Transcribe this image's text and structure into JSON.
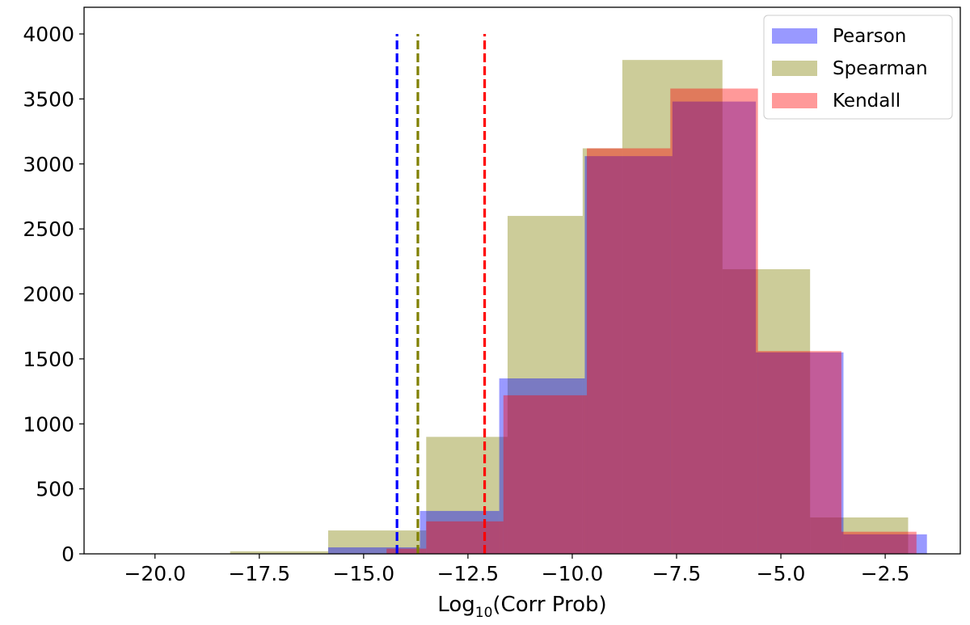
{
  "chart_data": {
    "type": "bar",
    "title": "",
    "xlabel": "Log",
    "xlabel_sub": "10",
    "xlabel_rest": "(Corr Prob)",
    "ylabel": "",
    "xlim": [
      -21.7,
      -0.7
    ],
    "ylim": [
      0,
      4000
    ],
    "grid": false,
    "legend_position": "top-right",
    "x_ticks": [
      -20.0,
      -17.5,
      -15.0,
      -12.5,
      -10.0,
      -7.5,
      -5.0,
      -2.5
    ],
    "x_tick_labels": [
      "−20.0",
      "−17.5",
      "−15.0",
      "−12.5",
      "−10.0",
      "−7.5",
      "−5.0",
      "−2.5"
    ],
    "y_ticks": [
      0,
      500,
      1000,
      1500,
      2000,
      2500,
      3000,
      3500,
      4000
    ],
    "y_tick_labels": [
      "0",
      "500",
      "1000",
      "1500",
      "2000",
      "2500",
      "3000",
      "3500",
      "4000"
    ],
    "series": [
      {
        "name": "Spearman",
        "color": "#808000",
        "opacity": 0.4,
        "bin_edges": [
          -20.5,
          -18.2,
          -15.85,
          -13.5,
          -11.55,
          -9.75,
          -8.8,
          -6.4,
          -4.3,
          -1.95
        ],
        "counts": [
          0,
          20,
          180,
          900,
          2600,
          3120,
          3800,
          2190,
          280
        ]
      },
      {
        "name": "Pearson",
        "color": "#0000ff",
        "opacity": 0.4,
        "bin_edges": [
          -15.85,
          -13.65,
          -11.75,
          -9.7,
          -7.6,
          -5.6,
          -3.5,
          -1.5
        ],
        "counts": [
          50,
          330,
          1350,
          3060,
          3480,
          1550,
          150
        ]
      },
      {
        "name": "Kendall",
        "color": "#ff0000",
        "opacity": 0.4,
        "bin_edges": [
          -14.45,
          -13.5,
          -11.65,
          -9.65,
          -7.65,
          -5.55,
          -3.55,
          -1.75
        ],
        "counts": [
          40,
          250,
          1220,
          3120,
          3580,
          1560,
          170
        ]
      }
    ],
    "threshold_lines": [
      {
        "x": -14.2,
        "color": "#0000ff"
      },
      {
        "x": -13.7,
        "color": "#808000"
      },
      {
        "x": -12.1,
        "color": "#ff0000"
      }
    ]
  }
}
